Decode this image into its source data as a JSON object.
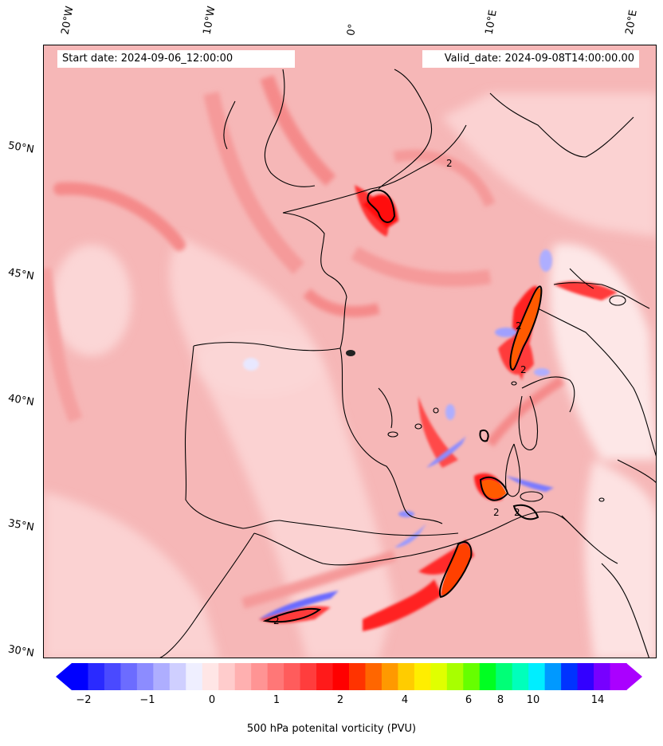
{
  "map": {
    "start_date": "Start date: 2024-09-06_12:00:00",
    "valid_date": "Valid_date: 2024-09-08T14:00:00.00",
    "longitude_labels": [
      "20°W",
      "10°W",
      "0°",
      "10°E",
      "20°E"
    ],
    "latitude_labels": [
      "50°N",
      "45°N",
      "40°N",
      "35°N",
      "30°N"
    ],
    "contour_label": "2",
    "field": "500 hPa potential vorticity",
    "colors": {
      "background_pv": "#f6b7b7",
      "low_pv": "#fde4e4",
      "mid_pv": "#f58a8a",
      "high_pv": "#ff2a2a",
      "very_high_pv": "#ff5a00",
      "negative_pv": "#6a6aff",
      "coastline": "#000000"
    }
  },
  "colorbar": {
    "label": "500 hPa potenital vorticity (PVU)",
    "tick_labels": [
      "−2",
      "−1",
      "0",
      "1",
      "2",
      "4",
      "6",
      "8",
      "10",
      "14"
    ],
    "colors": [
      "#0000ff",
      "#2a2aff",
      "#4a4aff",
      "#6c6cff",
      "#8c8cff",
      "#aeaeff",
      "#cfcfff",
      "#efefff",
      "#ffe6e6",
      "#ffcccc",
      "#ffb0b0",
      "#ff9494",
      "#ff7777",
      "#ff5c5c",
      "#ff3d3d",
      "#ff1a1a",
      "#ff0000",
      "#ff3300",
      "#ff6600",
      "#ff9900",
      "#ffcc00",
      "#ffee00",
      "#e0ff00",
      "#a8ff00",
      "#66ff00",
      "#00ff22",
      "#00ff77",
      "#00ffbb",
      "#00eeff",
      "#0099ff",
      "#0033ff",
      "#3300ff",
      "#7700ff",
      "#aa00ff"
    ],
    "extend_min_color": "#0000ff",
    "extend_max_color": "#aa00ff"
  }
}
